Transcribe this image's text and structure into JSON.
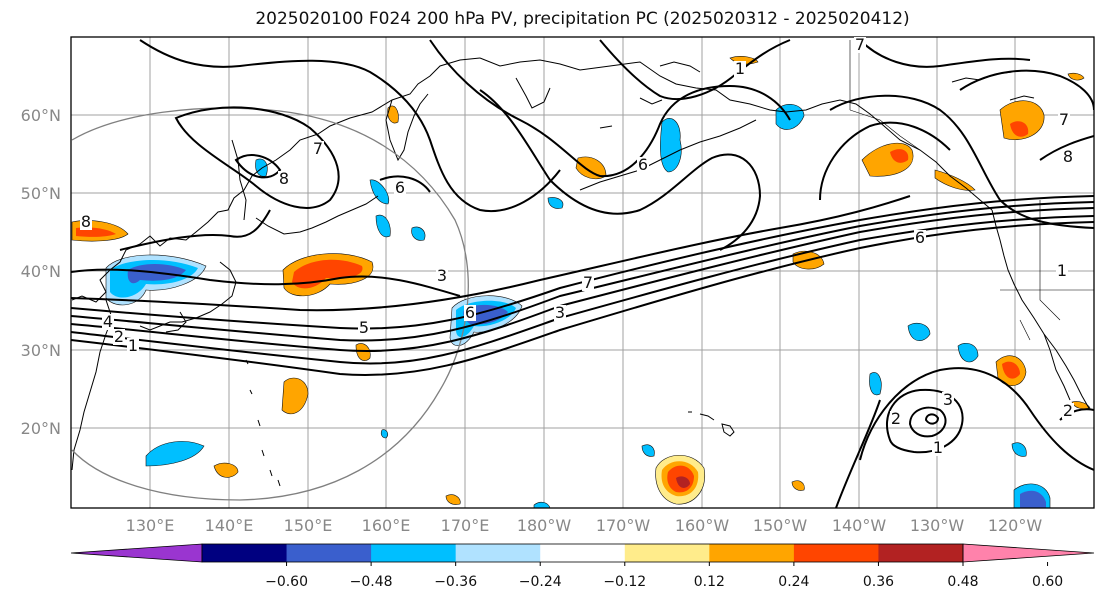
{
  "title": "2025020100 F024 200 hPa PV, precipitation PC (2025020312 - 2025020412)",
  "latitude_labels": [
    "60°N",
    "50°N",
    "40°N",
    "30°N",
    "20°N"
  ],
  "longitude_labels": [
    "130°E",
    "140°E",
    "150°E",
    "160°E",
    "170°E",
    "180°W",
    "170°W",
    "160°W",
    "150°W",
    "140°W",
    "130°W",
    "120°W"
  ],
  "contour_labels": [
    "1",
    "2",
    "4",
    "5",
    "6",
    "7",
    "8",
    "3",
    "7",
    "6",
    "7",
    "8",
    "6",
    "1",
    "2",
    "3",
    "1",
    "8",
    "6",
    "7",
    "1",
    "3",
    "2"
  ],
  "colorbar": {
    "colors": [
      "#9a35d0",
      "#000080",
      "#3a5fcd",
      "#00bfff",
      "#b0e2ff",
      "#ffffff",
      "#ffec8b",
      "#ffa500",
      "#ff4500",
      "#b22222",
      "#ff82ab"
    ],
    "tick_labels": [
      "−0.60",
      "−0.48",
      "−0.36",
      "−0.24",
      "−0.12",
      "0.12",
      "0.24",
      "0.36",
      "0.48",
      "0.60"
    ]
  }
}
